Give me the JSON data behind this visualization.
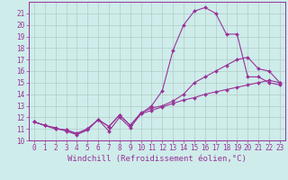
{
  "xlabel": "Windchill (Refroidissement éolien,°C)",
  "bg_color": "#ceecea",
  "grid_color": "#b0ccc8",
  "line_color": "#993399",
  "ylim": [
    10,
    22
  ],
  "xlim": [
    -0.5,
    23.5
  ],
  "yticks": [
    10,
    11,
    12,
    13,
    14,
    15,
    16,
    17,
    18,
    19,
    20,
    21
  ],
  "xticks": [
    0,
    1,
    2,
    3,
    4,
    5,
    6,
    7,
    8,
    9,
    10,
    11,
    12,
    13,
    14,
    15,
    16,
    17,
    18,
    19,
    20,
    21,
    22,
    23
  ],
  "curve1_x": [
    0,
    1,
    2,
    3,
    4,
    5,
    6,
    7,
    8,
    9,
    10,
    11,
    12,
    13,
    14,
    15,
    16,
    17,
    18,
    19,
    20,
    21,
    22,
    23
  ],
  "curve1_y": [
    11.6,
    11.3,
    11.1,
    10.8,
    10.5,
    10.9,
    11.8,
    10.8,
    12.0,
    11.1,
    12.3,
    13.0,
    14.3,
    17.8,
    20.0,
    21.2,
    21.5,
    21.0,
    19.2,
    19.2,
    15.5,
    15.5,
    15.0,
    14.8
  ],
  "curve2_x": [
    0,
    1,
    2,
    3,
    4,
    5,
    6,
    7,
    8,
    9,
    10,
    11,
    12,
    13,
    14,
    15,
    16,
    17,
    18,
    19,
    20,
    21,
    22,
    23
  ],
  "curve2_y": [
    11.6,
    11.3,
    11.0,
    10.9,
    10.6,
    11.0,
    11.8,
    11.2,
    12.2,
    11.3,
    12.3,
    12.6,
    12.9,
    13.2,
    13.5,
    13.7,
    14.0,
    14.2,
    14.4,
    14.6,
    14.8,
    15.0,
    15.2,
    15.0
  ],
  "curve3_x": [
    0,
    1,
    2,
    3,
    4,
    5,
    6,
    7,
    8,
    9,
    10,
    11,
    12,
    13,
    14,
    15,
    16,
    17,
    18,
    19,
    20,
    21,
    22,
    23
  ],
  "curve3_y": [
    11.6,
    11.3,
    11.0,
    10.9,
    10.6,
    11.0,
    11.8,
    11.2,
    12.2,
    11.3,
    12.4,
    12.8,
    13.0,
    13.4,
    14.0,
    15.0,
    15.5,
    16.0,
    16.5,
    17.0,
    17.2,
    16.2,
    16.0,
    15.0
  ],
  "markersize": 2.0,
  "linewidth": 0.8,
  "xlabel_fontsize": 6.5,
  "tick_fontsize": 5.5
}
